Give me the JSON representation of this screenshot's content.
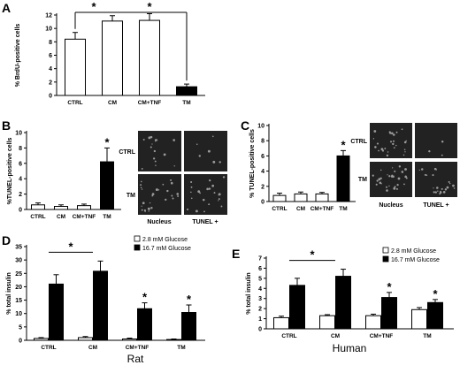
{
  "figure": {
    "species_labels": [
      "Rat",
      "Human"
    ]
  },
  "micrographs": {
    "B": {
      "rows": [
        "CTRL",
        "TM"
      ],
      "columns": [
        "Nucleus",
        "TUNEL +"
      ]
    },
    "C": {
      "rows": [
        "CTRL",
        "TM"
      ],
      "columns": [
        "Nucleus",
        "TUNEL +"
      ]
    }
  },
  "chart_data": [
    {
      "panel": "A",
      "type": "bar",
      "ylabel": "% BrdU-positive cells",
      "categories": [
        "CTRL",
        "CM",
        "CM+TNF",
        "TM"
      ],
      "values": [
        8.4,
        11.1,
        11.2,
        1.3
      ],
      "errors": [
        1.0,
        0.8,
        1.0,
        0.4
      ],
      "bar_colors": [
        "#ffffff",
        "#ffffff",
        "#ffffff",
        "#000000"
      ],
      "ylim": [
        0,
        12
      ],
      "yticks": [
        0,
        2,
        4,
        6,
        8,
        10,
        12
      ],
      "significance": [
        {
          "from": 0,
          "to": 1,
          "label": "*"
        },
        {
          "from": 1,
          "to": 3,
          "label": "*"
        }
      ]
    },
    {
      "panel": "B",
      "type": "bar",
      "ylabel": "%TUNEL-positive cells",
      "categories": [
        "CTRL",
        "CM",
        "CM+TNF",
        "TM"
      ],
      "values": [
        0.6,
        0.4,
        0.5,
        6.2
      ],
      "errors": [
        0.25,
        0.2,
        0.2,
        1.8
      ],
      "bar_colors": [
        "#ffffff",
        "#ffffff",
        "#ffffff",
        "#000000"
      ],
      "ylim": [
        0,
        10
      ],
      "yticks": [
        0,
        2,
        4,
        6,
        8,
        10
      ],
      "annotations": [
        {
          "index": 3,
          "label": "*"
        }
      ]
    },
    {
      "panel": "C",
      "type": "bar",
      "ylabel": "% TUNEL-positive cells",
      "categories": [
        "CTRL",
        "CM",
        "CM+TNF",
        "TM"
      ],
      "values": [
        0.8,
        1.0,
        1.0,
        6.0
      ],
      "errors": [
        0.3,
        0.25,
        0.2,
        0.7
      ],
      "bar_colors": [
        "#ffffff",
        "#ffffff",
        "#ffffff",
        "#000000"
      ],
      "ylim": [
        0,
        10
      ],
      "yticks": [
        0,
        2,
        4,
        6,
        8,
        10
      ],
      "annotations": [
        {
          "index": 3,
          "label": "*"
        }
      ]
    },
    {
      "panel": "D",
      "type": "bar",
      "ylabel": "% total insulin",
      "categories": [
        "CTRL",
        "CM",
        "CM+TNF",
        "TM"
      ],
      "series": [
        {
          "name": "2.8 mM Glucose",
          "color": "#ffffff",
          "values": [
            0.7,
            1.0,
            0.5,
            0.3
          ],
          "errors": [
            0.3,
            0.4,
            0.3,
            0.2
          ]
        },
        {
          "name": "16.7 mM Glucose",
          "color": "#000000",
          "values": [
            21,
            25.8,
            11.8,
            10.4
          ],
          "errors": [
            3.5,
            3.8,
            2.2,
            2.8
          ]
        }
      ],
      "ylim": [
        0,
        35
      ],
      "yticks": [
        0,
        5,
        10,
        15,
        20,
        25,
        30,
        35
      ],
      "significance": [
        {
          "from": 0,
          "to": 1,
          "label": "*"
        }
      ],
      "annotations": [
        {
          "index": 2,
          "label": "*"
        },
        {
          "index": 3,
          "label": "*"
        }
      ],
      "legend": "top-right"
    },
    {
      "panel": "E",
      "type": "bar",
      "ylabel": "% total insulin",
      "categories": [
        "CTRL",
        "CM",
        "CM+TNF",
        "TM"
      ],
      "series": [
        {
          "name": "2.8 mM Glucose",
          "color": "#ffffff",
          "values": [
            1.1,
            1.3,
            1.3,
            1.9
          ],
          "errors": [
            0.15,
            0.1,
            0.15,
            0.2
          ]
        },
        {
          "name": "16.7 mM Glucose",
          "color": "#000000",
          "values": [
            4.3,
            5.2,
            3.1,
            2.6
          ],
          "errors": [
            0.7,
            0.7,
            0.5,
            0.3
          ]
        }
      ],
      "ylim": [
        0,
        7
      ],
      "yticks": [
        0,
        1,
        2,
        3,
        4,
        5,
        6,
        7
      ],
      "significance": [
        {
          "from": 0,
          "to": 1,
          "label": "*"
        }
      ],
      "annotations": [
        {
          "index": 2,
          "label": "*"
        },
        {
          "index": 3,
          "label": "*"
        }
      ],
      "legend": "top-right"
    }
  ]
}
